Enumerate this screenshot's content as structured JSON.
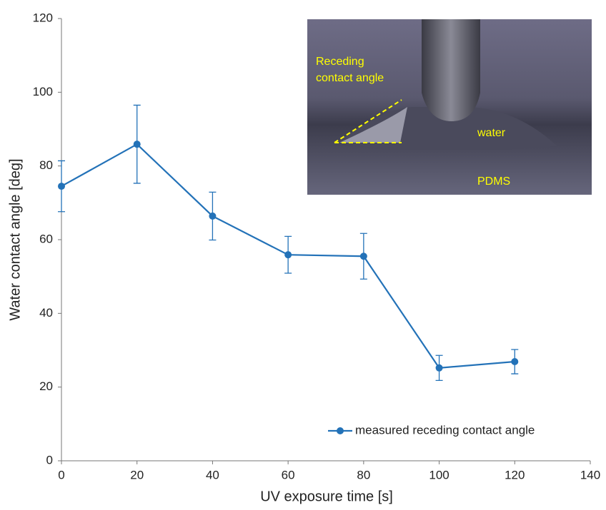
{
  "chart_data": {
    "type": "line",
    "x_label": "UV exposure time [s]",
    "y_label": "Water contact angle [deg]",
    "x": [
      0,
      20,
      40,
      60,
      80,
      100,
      120
    ],
    "series": [
      {
        "name": "measured receding contact angle",
        "color": "#2372b8",
        "values": [
          74.5,
          85.9,
          66.4,
          55.9,
          55.5,
          25.2,
          26.9
        ],
        "errors": [
          6.9,
          10.6,
          6.5,
          5.0,
          6.2,
          3.4,
          3.3
        ]
      }
    ],
    "xlim": [
      0,
      140
    ],
    "xticks": [
      0,
      20,
      40,
      60,
      80,
      100,
      120,
      140
    ],
    "ylim": [
      0,
      120
    ],
    "yticks": [
      0,
      20,
      40,
      60,
      80,
      100,
      120
    ],
    "grid": false,
    "legend": "lower right",
    "annotations": [
      "Receding",
      "contact angle",
      "water",
      "PDMS"
    ]
  }
}
